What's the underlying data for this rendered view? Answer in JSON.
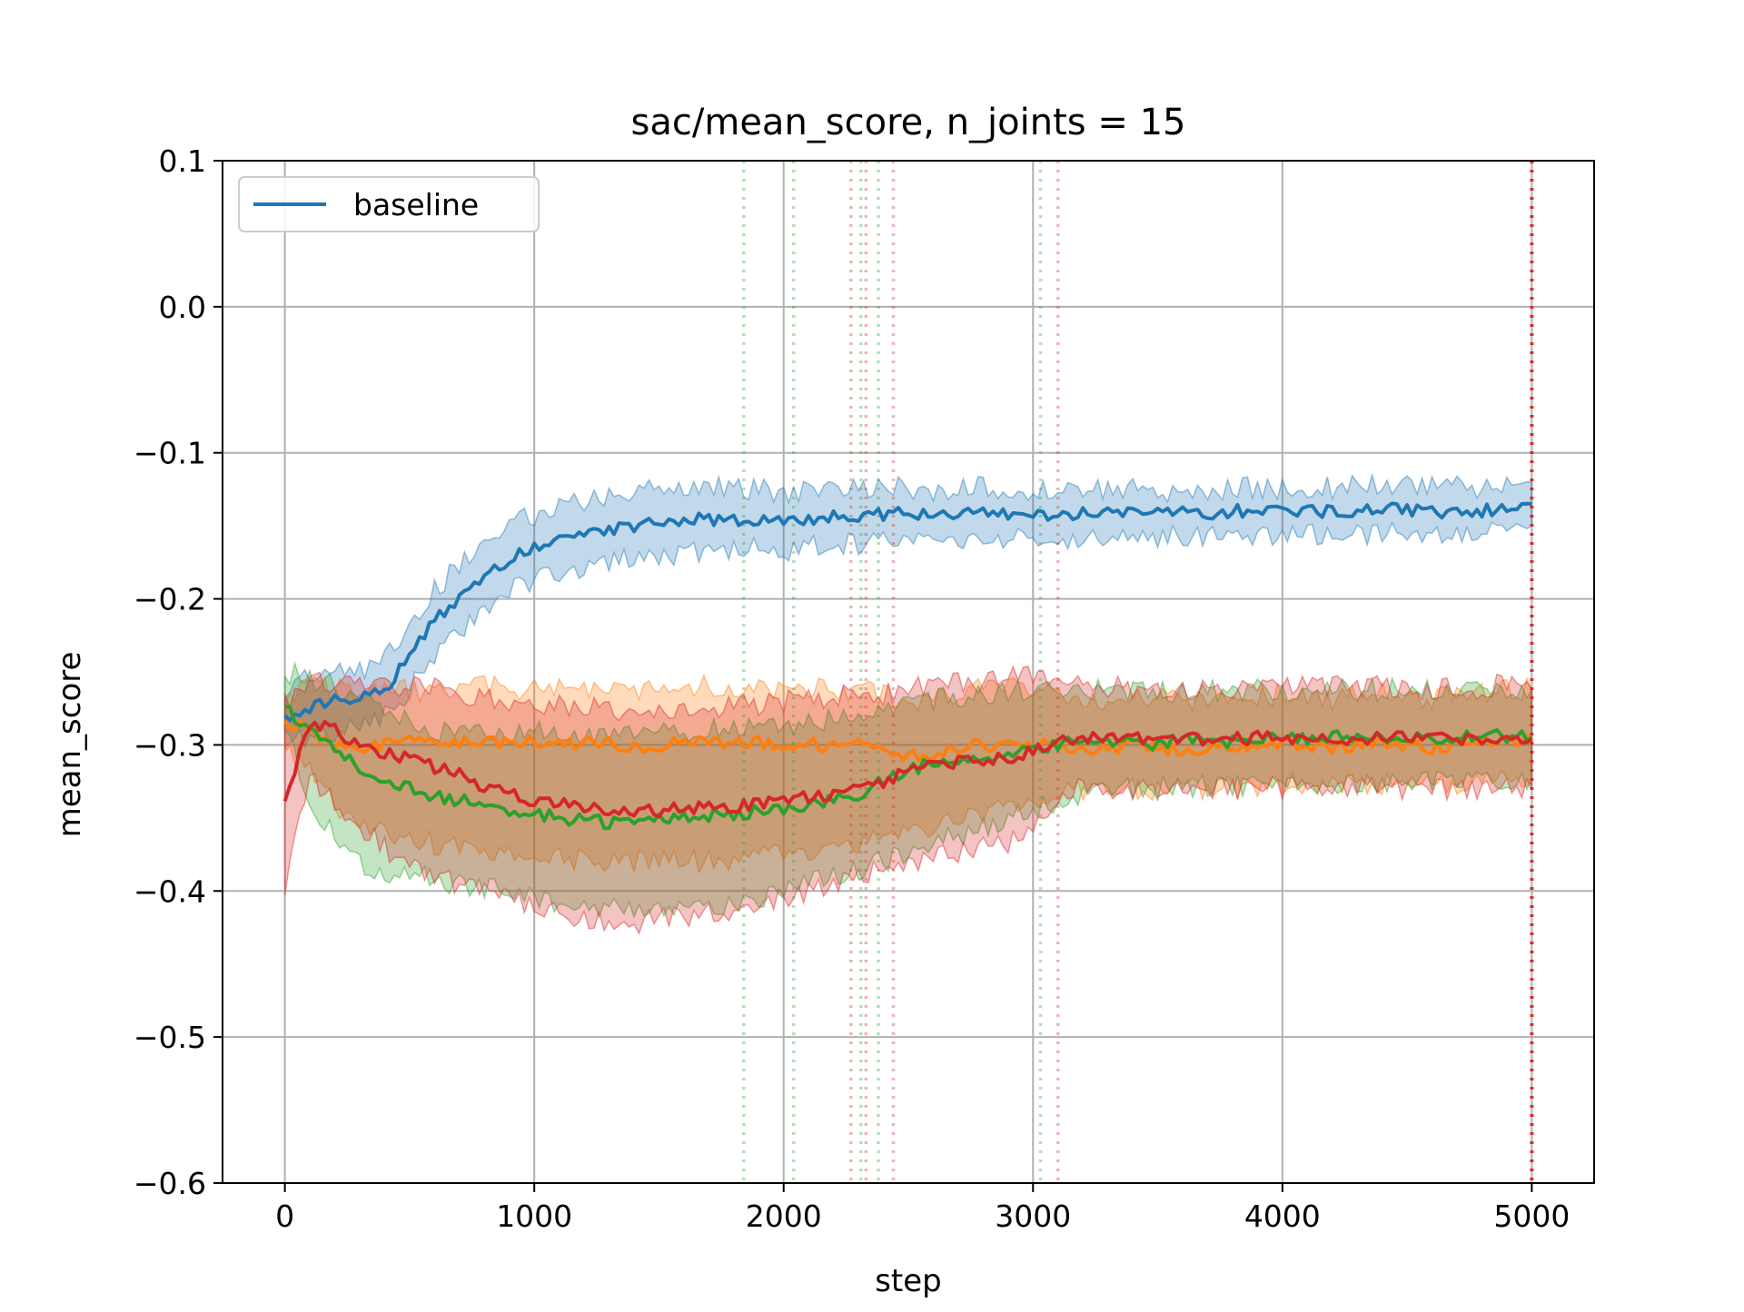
{
  "chart_data": {
    "type": "line",
    "title": "sac/mean_score, n_joints = 15",
    "xlabel": "step",
    "ylabel": "mean_score",
    "xlim": [
      -250,
      5250
    ],
    "ylim": [
      -0.6,
      0.1
    ],
    "xticks": [
      0,
      1000,
      2000,
      3000,
      4000,
      5000
    ],
    "xtick_labels": [
      "0",
      "1000",
      "2000",
      "3000",
      "4000",
      "5000"
    ],
    "yticks": [
      0.1,
      0.0,
      -0.1,
      -0.2,
      -0.3,
      -0.4,
      -0.5,
      -0.6
    ],
    "ytick_labels": [
      "0.1",
      "0.0",
      "−0.1",
      "−0.2",
      "−0.3",
      "−0.4",
      "−0.5",
      "−0.6"
    ],
    "grid": true,
    "legend_position": "top-left",
    "series": [
      {
        "name": "baseline",
        "color": "#1f77b4",
        "in_legend": true,
        "x": [
          0,
          100,
          200,
          300,
          400,
          500,
          600,
          700,
          800,
          900,
          1000,
          1100,
          1200,
          1300,
          1400,
          1500,
          1600,
          1700,
          1800,
          1900,
          2000,
          2100,
          2200,
          2300,
          2400,
          2500,
          2600,
          2700,
          2800,
          2900,
          3000,
          3100,
          3200,
          3300,
          3400,
          3500,
          3600,
          3700,
          3800,
          3900,
          4000,
          4100,
          4200,
          4300,
          4400,
          4500,
          4600,
          4700,
          4800,
          4900,
          5000
        ],
        "y": [
          -0.28,
          -0.275,
          -0.27,
          -0.268,
          -0.262,
          -0.24,
          -0.215,
          -0.2,
          -0.185,
          -0.172,
          -0.165,
          -0.16,
          -0.155,
          -0.152,
          -0.15,
          -0.148,
          -0.147,
          -0.145,
          -0.146,
          -0.145,
          -0.147,
          -0.145,
          -0.144,
          -0.143,
          -0.142,
          -0.142,
          -0.143,
          -0.142,
          -0.141,
          -0.141,
          -0.142,
          -0.143,
          -0.142,
          -0.141,
          -0.141,
          -0.142,
          -0.141,
          -0.141,
          -0.14,
          -0.14,
          -0.141,
          -0.14,
          -0.14,
          -0.139,
          -0.139,
          -0.139,
          -0.14,
          -0.14,
          -0.14,
          -0.138,
          -0.135
        ],
        "band_lower": [
          -0.3,
          -0.295,
          -0.29,
          -0.288,
          -0.28,
          -0.262,
          -0.237,
          -0.222,
          -0.208,
          -0.195,
          -0.188,
          -0.183,
          -0.178,
          -0.175,
          -0.173,
          -0.171,
          -0.168,
          -0.167,
          -0.166,
          -0.165,
          -0.167,
          -0.164,
          -0.163,
          -0.162,
          -0.161,
          -0.16,
          -0.161,
          -0.159,
          -0.158,
          -0.158,
          -0.158,
          -0.159,
          -0.158,
          -0.157,
          -0.157,
          -0.158,
          -0.157,
          -0.157,
          -0.156,
          -0.156,
          -0.157,
          -0.156,
          -0.156,
          -0.155,
          -0.155,
          -0.155,
          -0.156,
          -0.156,
          -0.155,
          -0.154,
          -0.15
        ],
        "band_upper": [
          -0.26,
          -0.255,
          -0.25,
          -0.248,
          -0.242,
          -0.218,
          -0.193,
          -0.178,
          -0.163,
          -0.149,
          -0.142,
          -0.137,
          -0.132,
          -0.129,
          -0.127,
          -0.125,
          -0.126,
          -0.123,
          -0.126,
          -0.125,
          -0.127,
          -0.126,
          -0.125,
          -0.124,
          -0.123,
          -0.124,
          -0.125,
          -0.125,
          -0.124,
          -0.124,
          -0.126,
          -0.127,
          -0.126,
          -0.125,
          -0.125,
          -0.126,
          -0.125,
          -0.125,
          -0.124,
          -0.124,
          -0.125,
          -0.124,
          -0.124,
          -0.123,
          -0.123,
          -0.123,
          -0.124,
          -0.124,
          -0.125,
          -0.122,
          -0.12
        ]
      },
      {
        "name": "",
        "color": "#ff7f0e",
        "in_legend": false,
        "x": [
          0,
          100,
          200,
          300,
          400,
          500,
          600,
          700,
          800,
          900,
          1000,
          1100,
          1200,
          1300,
          1400,
          1500,
          1600,
          1700,
          1800,
          1900,
          2000,
          2100,
          2200,
          2300,
          2400,
          2500,
          2600,
          2700,
          2800,
          2900,
          3000,
          3100,
          3200,
          3300,
          3400,
          3500,
          3600,
          3700,
          3800,
          3900,
          4000,
          4100,
          4200,
          4300,
          4400,
          4500,
          4600,
          4700,
          4800,
          4900,
          5000
        ],
        "y": [
          -0.285,
          -0.29,
          -0.3,
          -0.305,
          -0.3,
          -0.295,
          -0.3,
          -0.298,
          -0.296,
          -0.3,
          -0.298,
          -0.3,
          -0.297,
          -0.298,
          -0.302,
          -0.3,
          -0.298,
          -0.296,
          -0.3,
          -0.298,
          -0.3,
          -0.298,
          -0.302,
          -0.3,
          -0.305,
          -0.308,
          -0.306,
          -0.302,
          -0.3,
          -0.3,
          -0.298,
          -0.3,
          -0.302,
          -0.304,
          -0.3,
          -0.302,
          -0.305,
          -0.302,
          -0.3,
          -0.301,
          -0.299,
          -0.3,
          -0.302,
          -0.3,
          -0.298,
          -0.3,
          -0.302,
          -0.3,
          -0.298,
          -0.297,
          -0.296
        ],
        "band_lower": [
          -0.3,
          -0.32,
          -0.34,
          -0.352,
          -0.36,
          -0.365,
          -0.368,
          -0.37,
          -0.372,
          -0.374,
          -0.376,
          -0.378,
          -0.379,
          -0.38,
          -0.38,
          -0.38,
          -0.38,
          -0.38,
          -0.378,
          -0.376,
          -0.375,
          -0.373,
          -0.37,
          -0.367,
          -0.365,
          -0.36,
          -0.356,
          -0.352,
          -0.348,
          -0.344,
          -0.338,
          -0.333,
          -0.33,
          -0.33,
          -0.33,
          -0.33,
          -0.33,
          -0.33,
          -0.329,
          -0.328,
          -0.328,
          -0.328,
          -0.327,
          -0.327,
          -0.327,
          -0.326,
          -0.326,
          -0.326,
          -0.325,
          -0.325,
          -0.325
        ],
        "band_upper": [
          -0.265,
          -0.26,
          -0.262,
          -0.265,
          -0.264,
          -0.262,
          -0.265,
          -0.262,
          -0.26,
          -0.262,
          -0.261,
          -0.262,
          -0.26,
          -0.261,
          -0.263,
          -0.262,
          -0.26,
          -0.258,
          -0.262,
          -0.26,
          -0.262,
          -0.26,
          -0.264,
          -0.262,
          -0.266,
          -0.27,
          -0.268,
          -0.264,
          -0.262,
          -0.262,
          -0.262,
          -0.265,
          -0.268,
          -0.27,
          -0.266,
          -0.268,
          -0.27,
          -0.268,
          -0.266,
          -0.267,
          -0.265,
          -0.266,
          -0.268,
          -0.266,
          -0.264,
          -0.266,
          -0.268,
          -0.266,
          -0.264,
          -0.263,
          -0.262
        ]
      },
      {
        "name": "",
        "color": "#2ca02c",
        "in_legend": false,
        "x": [
          0,
          100,
          200,
          300,
          400,
          500,
          600,
          700,
          800,
          900,
          1000,
          1100,
          1200,
          1300,
          1400,
          1500,
          1600,
          1700,
          1800,
          1900,
          2000,
          2100,
          2200,
          2300,
          2400,
          2500,
          2600,
          2700,
          2800,
          2900,
          3000,
          3100,
          3200,
          3300,
          3400,
          3500,
          3600,
          3700,
          3800,
          3900,
          4000,
          4100,
          4200,
          4300,
          4400,
          4500,
          4600,
          4700,
          4800,
          4900,
          5000
        ],
        "y": [
          -0.275,
          -0.29,
          -0.3,
          -0.315,
          -0.325,
          -0.33,
          -0.335,
          -0.338,
          -0.342,
          -0.345,
          -0.347,
          -0.35,
          -0.352,
          -0.353,
          -0.352,
          -0.35,
          -0.349,
          -0.348,
          -0.348,
          -0.345,
          -0.343,
          -0.34,
          -0.338,
          -0.335,
          -0.325,
          -0.318,
          -0.312,
          -0.31,
          -0.31,
          -0.308,
          -0.303,
          -0.3,
          -0.298,
          -0.298,
          -0.298,
          -0.3,
          -0.296,
          -0.297,
          -0.298,
          -0.295,
          -0.295,
          -0.296,
          -0.294,
          -0.296,
          -0.295,
          -0.294,
          -0.296,
          -0.295,
          -0.294,
          -0.294,
          -0.295
        ],
        "band_lower": [
          -0.29,
          -0.34,
          -0.36,
          -0.38,
          -0.39,
          -0.39,
          -0.392,
          -0.395,
          -0.398,
          -0.4,
          -0.405,
          -0.408,
          -0.41,
          -0.41,
          -0.412,
          -0.41,
          -0.41,
          -0.41,
          -0.41,
          -0.405,
          -0.4,
          -0.395,
          -0.39,
          -0.385,
          -0.38,
          -0.374,
          -0.368,
          -0.362,
          -0.356,
          -0.35,
          -0.345,
          -0.34,
          -0.334,
          -0.33,
          -0.33,
          -0.33,
          -0.328,
          -0.328,
          -0.328,
          -0.327,
          -0.327,
          -0.327,
          -0.326,
          -0.326,
          -0.326,
          -0.325,
          -0.325,
          -0.325,
          -0.325,
          -0.325,
          -0.325
        ],
        "band_upper": [
          -0.25,
          -0.255,
          -0.26,
          -0.27,
          -0.28,
          -0.285,
          -0.29,
          -0.29,
          -0.29,
          -0.292,
          -0.29,
          -0.292,
          -0.294,
          -0.295,
          -0.294,
          -0.292,
          -0.29,
          -0.29,
          -0.29,
          -0.288,
          -0.286,
          -0.284,
          -0.282,
          -0.28,
          -0.275,
          -0.272,
          -0.268,
          -0.266,
          -0.266,
          -0.264,
          -0.262,
          -0.26,
          -0.262,
          -0.263,
          -0.263,
          -0.265,
          -0.262,
          -0.263,
          -0.264,
          -0.262,
          -0.262,
          -0.263,
          -0.262,
          -0.263,
          -0.262,
          -0.262,
          -0.263,
          -0.262,
          -0.262,
          -0.262,
          -0.262
        ]
      },
      {
        "name": "",
        "color": "#d62728",
        "in_legend": false,
        "x": [
          0,
          100,
          200,
          300,
          400,
          500,
          600,
          700,
          800,
          900,
          1000,
          1100,
          1200,
          1300,
          1400,
          1500,
          1600,
          1700,
          1800,
          1900,
          2000,
          2100,
          2200,
          2300,
          2400,
          2500,
          2600,
          2700,
          2800,
          2900,
          3000,
          3100,
          3200,
          3300,
          3400,
          3500,
          3600,
          3700,
          3800,
          3900,
          4000,
          4100,
          4200,
          4300,
          4400,
          4500,
          4600,
          4700,
          4800,
          4900,
          5000
        ],
        "y": [
          -0.34,
          -0.285,
          -0.29,
          -0.3,
          -0.305,
          -0.31,
          -0.315,
          -0.32,
          -0.328,
          -0.333,
          -0.338,
          -0.34,
          -0.342,
          -0.345,
          -0.346,
          -0.345,
          -0.344,
          -0.343,
          -0.342,
          -0.34,
          -0.338,
          -0.336,
          -0.334,
          -0.33,
          -0.325,
          -0.318,
          -0.315,
          -0.312,
          -0.31,
          -0.308,
          -0.305,
          -0.298,
          -0.296,
          -0.295,
          -0.296,
          -0.297,
          -0.296,
          -0.297,
          -0.296,
          -0.295,
          -0.296,
          -0.295,
          -0.295,
          -0.296,
          -0.295,
          -0.295,
          -0.296,
          -0.295,
          -0.296,
          -0.294,
          -0.296
        ],
        "band_lower": [
          -0.4,
          -0.32,
          -0.34,
          -0.355,
          -0.37,
          -0.385,
          -0.39,
          -0.395,
          -0.4,
          -0.405,
          -0.41,
          -0.415,
          -0.418,
          -0.42,
          -0.422,
          -0.42,
          -0.418,
          -0.416,
          -0.413,
          -0.41,
          -0.405,
          -0.4,
          -0.395,
          -0.39,
          -0.385,
          -0.382,
          -0.378,
          -0.374,
          -0.37,
          -0.366,
          -0.36,
          -0.335,
          -0.33,
          -0.33,
          -0.33,
          -0.33,
          -0.33,
          -0.33,
          -0.33,
          -0.33,
          -0.33,
          -0.33,
          -0.33,
          -0.33,
          -0.33,
          -0.33,
          -0.33,
          -0.33,
          -0.33,
          -0.33,
          -0.33
        ],
        "band_upper": [
          -0.27,
          -0.26,
          -0.255,
          -0.26,
          -0.258,
          -0.26,
          -0.262,
          -0.265,
          -0.268,
          -0.27,
          -0.272,
          -0.274,
          -0.275,
          -0.276,
          -0.276,
          -0.276,
          -0.275,
          -0.274,
          -0.273,
          -0.272,
          -0.27,
          -0.268,
          -0.267,
          -0.266,
          -0.265,
          -0.262,
          -0.26,
          -0.258,
          -0.256,
          -0.254,
          -0.252,
          -0.26,
          -0.26,
          -0.26,
          -0.262,
          -0.263,
          -0.262,
          -0.263,
          -0.262,
          -0.26,
          -0.262,
          -0.26,
          -0.26,
          -0.262,
          -0.26,
          -0.26,
          -0.262,
          -0.26,
          -0.262,
          -0.258,
          -0.262
        ]
      }
    ],
    "vertical_markers": [
      {
        "x": 1840,
        "color": "#2ca02c",
        "style": "dotted"
      },
      {
        "x": 2040,
        "color": "#2ca02c",
        "style": "dotted"
      },
      {
        "x": 2270,
        "color": "#d62728",
        "style": "dotted"
      },
      {
        "x": 2310,
        "color": "#2ca02c",
        "style": "dotted"
      },
      {
        "x": 2330,
        "color": "#d62728",
        "style": "dotted"
      },
      {
        "x": 2380,
        "color": "#2ca02c",
        "style": "dotted"
      },
      {
        "x": 2440,
        "color": "#d62728",
        "style": "dotted"
      },
      {
        "x": 3030,
        "color": "#2ca02c",
        "style": "dotted"
      },
      {
        "x": 3100,
        "color": "#d62728",
        "style": "dotted"
      },
      {
        "x": 5000,
        "color": "#d62728",
        "style": "dotted-strong"
      }
    ]
  }
}
